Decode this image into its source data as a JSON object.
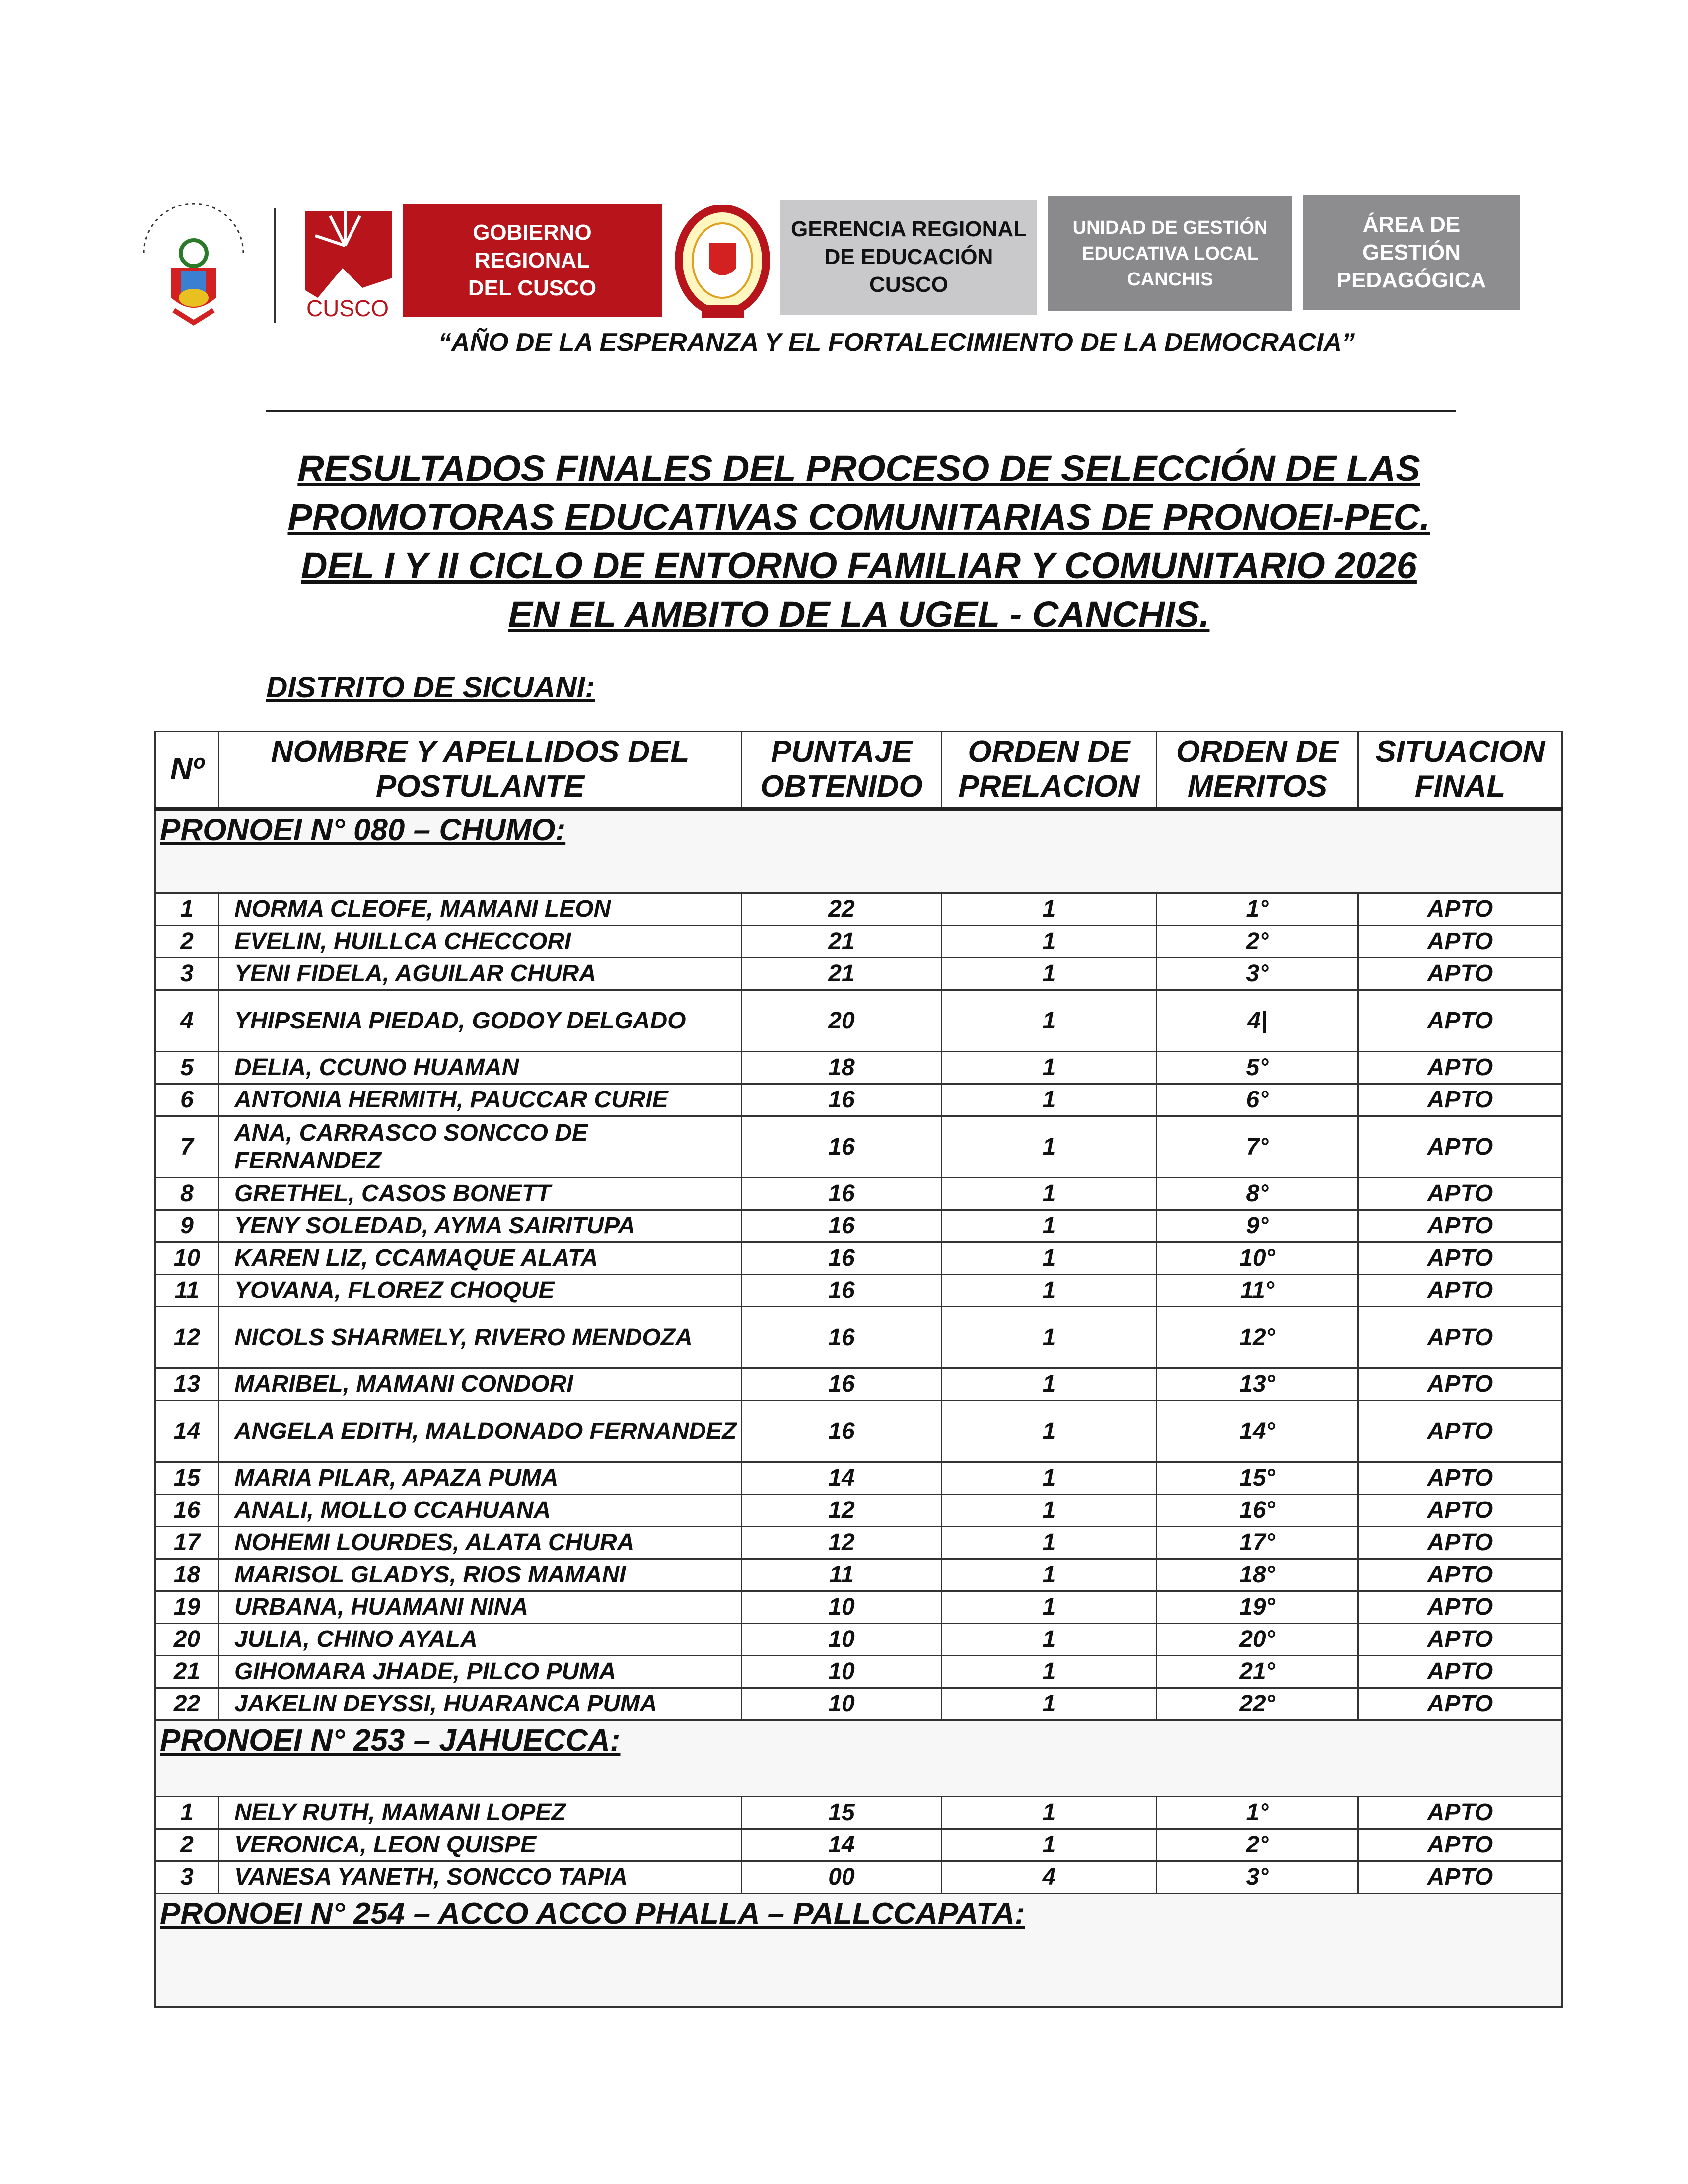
{
  "header": {
    "logos": {
      "peru_seal": "REPÚBLICA DEL PERÚ",
      "cusco_logo": "CUSCO",
      "gerencia_emblem": "GERENCIA REGIONAL DE EDUCACIÓN CUSCO"
    },
    "gobierno": "GOBIERNO\nREGIONAL\nDEL CUSCO",
    "gerencia": "GERENCIA REGIONAL\nDE EDUCACIÓN\nCUSCO",
    "ugel": "UNIDAD DE GESTIÓN\nEDUCATIVA LOCAL\nCANCHIS",
    "area": "ÁREA DE\nGESTIÓN\nPEDAGÓGICA",
    "motto": "“AÑO DE LA ESPERANZA Y EL FORTALECIMIENTO DE LA DEMOCRACIA”",
    "colors": {
      "red": "#b8141c",
      "gray_light": "#c9c9cb",
      "gray_dark": "#8a8a8c"
    }
  },
  "title": [
    "RESULTADOS FINALES DEL PROCESO DE SELECCIÓN DE LAS",
    "PROMOTORAS EDUCATIVAS COMUNITARIAS DE PRONOEI-PEC.",
    "DEL I Y II CICLO DE ENTORNO FAMILIAR Y COMUNITARIO 2026",
    "EN EL AMBITO DE LA UGEL - CANCHIS."
  ],
  "district": "DISTRITO DE SICUANI:",
  "table": {
    "columns": [
      "Nº",
      "NOMBRE Y APELLIDOS DEL POSTULANTE",
      "PUNTAJE OBTENIDO",
      "ORDEN DE PRELACION",
      "ORDEN DE MERITOS",
      "SITUACION FINAL"
    ],
    "sections": [
      {
        "title": "PRONOEI N° 080 – CHUMO:",
        "rows": [
          [
            "1",
            "NORMA CLEOFE, MAMANI LEON",
            "22",
            "1",
            "1°",
            "APTO"
          ],
          [
            "2",
            "EVELIN, HUILLCA CHECCORI",
            "21",
            "1",
            "2°",
            "APTO"
          ],
          [
            "3",
            "YENI FIDELA, AGUILAR CHURA",
            "21",
            "1",
            "3°",
            "APTO"
          ],
          [
            "4",
            "YHIPSENIA PIEDAD, GODOY DELGADO",
            "20",
            "1",
            "4|",
            "APTO"
          ],
          [
            "5",
            "DELIA, CCUNO HUAMAN",
            "18",
            "1",
            "5°",
            "APTO"
          ],
          [
            "6",
            "ANTONIA HERMITH, PAUCCAR CURIE",
            "16",
            "1",
            "6°",
            "APTO"
          ],
          [
            "7",
            "ANA, CARRASCO SONCCO DE FERNANDEZ",
            "16",
            "1",
            "7°",
            "APTO"
          ],
          [
            "8",
            "GRETHEL, CASOS BONETT",
            "16",
            "1",
            "8°",
            "APTO"
          ],
          [
            "9",
            "YENY SOLEDAD, AYMA SAIRITUPA",
            "16",
            "1",
            "9°",
            "APTO"
          ],
          [
            "10",
            "KAREN LIZ, CCAMAQUE ALATA",
            "16",
            "1",
            "10°",
            "APTO"
          ],
          [
            "11",
            "YOVANA, FLOREZ CHOQUE",
            "16",
            "1",
            "11°",
            "APTO"
          ],
          [
            "12",
            "NICOLS SHARMELY, RIVERO MENDOZA",
            "16",
            "1",
            "12°",
            "APTO"
          ],
          [
            "13",
            "MARIBEL, MAMANI CONDORI",
            "16",
            "1",
            "13°",
            "APTO"
          ],
          [
            "14",
            "ANGELA EDITH, MALDONADO FERNANDEZ",
            "16",
            "1",
            "14°",
            "APTO"
          ],
          [
            "15",
            "MARIA PILAR, APAZA PUMA",
            "14",
            "1",
            "15°",
            "APTO"
          ],
          [
            "16",
            "ANALI, MOLLO CCAHUANA",
            "12",
            "1",
            "16°",
            "APTO"
          ],
          [
            "17",
            "NOHEMI LOURDES, ALATA CHURA",
            "12",
            "1",
            "17°",
            "APTO"
          ],
          [
            "18",
            "MARISOL GLADYS, RIOS MAMANI",
            "11",
            "1",
            "18°",
            "APTO"
          ],
          [
            "19",
            "URBANA, HUAMANI NINA",
            "10",
            "1",
            "19°",
            "APTO"
          ],
          [
            "20",
            "JULIA, CHINO AYALA",
            "10",
            "1",
            "20°",
            "APTO"
          ],
          [
            "21",
            "GIHOMARA JHADE, PILCO PUMA",
            "10",
            "1",
            "21°",
            "APTO"
          ],
          [
            "22",
            "JAKELIN DEYSSI, HUARANCA PUMA",
            "10",
            "1",
            "22°",
            "APTO"
          ]
        ]
      },
      {
        "title": "PRONOEI N° 253 – JAHUECCA:",
        "rows": [
          [
            "1",
            "NELY RUTH, MAMANI LOPEZ",
            "15",
            "1",
            "1°",
            "APTO"
          ],
          [
            "2",
            "VERONICA, LEON QUISPE",
            "14",
            "1",
            "2°",
            "APTO"
          ],
          [
            "3",
            "VANESA YANETH, SONCCO TAPIA",
            "00",
            "4",
            "3°",
            "APTO"
          ]
        ]
      },
      {
        "title": "PRONOEI N° 254 – ACCO ACCO PHALLA – PALLCCAPATA:",
        "rows": []
      }
    ]
  }
}
